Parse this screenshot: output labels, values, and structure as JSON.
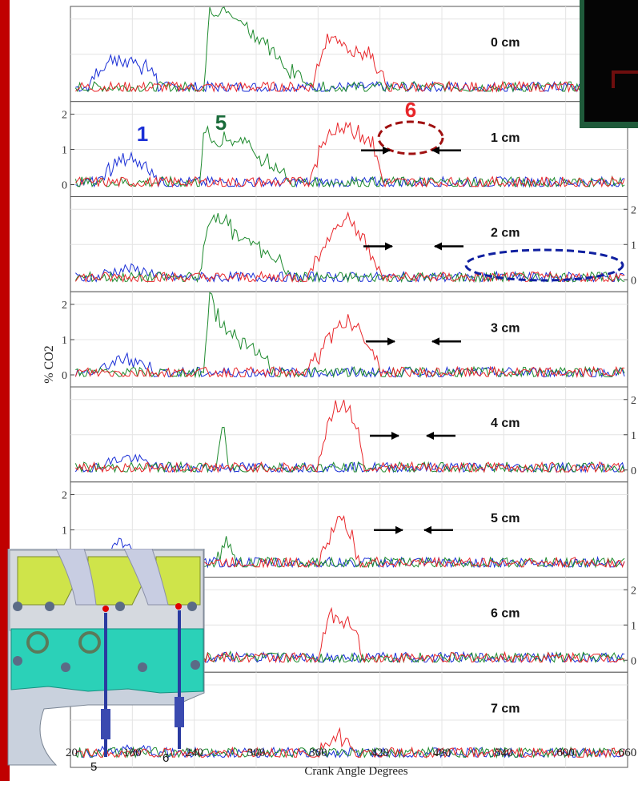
{
  "title_fragment": "",
  "chart_data": {
    "type": "line",
    "xlabel": "Crank Angle Degrees",
    "ylabel": "% CO2",
    "xlim": [
      120,
      660
    ],
    "x_ticks": [
      "20",
      "180",
      "240",
      "300",
      "360",
      "420",
      "480",
      "540",
      "600",
      "660"
    ],
    "y_ticks": [
      "0",
      "1",
      "2"
    ],
    "grid": true,
    "series_colors": {
      "cyl1": "#1a2fd6",
      "cyl5": "#1e8a2e",
      "cyl6": "#e8262a"
    },
    "panels": [
      {
        "label": "0 cm",
        "left_axis": false,
        "right_axis": false,
        "cyl1": [
          [
            140,
            0.25
          ],
          [
            160,
            0.8
          ],
          [
            185,
            0.72
          ],
          [
            205,
            0.35
          ]
        ],
        "cyl5": [
          [
            250,
            0.2
          ],
          [
            255,
            2.3
          ],
          [
            272,
            2.1
          ],
          [
            290,
            1.8
          ],
          [
            310,
            1.15
          ],
          [
            330,
            0.55
          ],
          [
            350,
            0.2
          ]
        ],
        "cyl6": [
          [
            355,
            0.2
          ],
          [
            368,
            1.45
          ],
          [
            390,
            1.05
          ],
          [
            410,
            0.95
          ],
          [
            425,
            0.2
          ]
        ]
      },
      {
        "label": "1 cm",
        "left_axis": true,
        "right_axis": false,
        "cyl1": [
          [
            150,
            0.15
          ],
          [
            170,
            0.65
          ],
          [
            190,
            0.55
          ],
          [
            205,
            0.2
          ]
        ],
        "cyl5": [
          [
            245,
            0.2
          ],
          [
            250,
            1.45
          ],
          [
            265,
            1.1
          ],
          [
            285,
            1.25
          ],
          [
            305,
            0.7
          ],
          [
            330,
            0.2
          ]
        ],
        "cyl6": [
          [
            352,
            0.2
          ],
          [
            368,
            1.4
          ],
          [
            392,
            1.55
          ],
          [
            412,
            1.25
          ],
          [
            422,
            0.15
          ]
        ]
      },
      {
        "label": "2 cm",
        "left_axis": false,
        "right_axis": true,
        "cyl1": [
          [
            150,
            0.1
          ],
          [
            175,
            0.25
          ],
          [
            200,
            0.15
          ]
        ],
        "cyl5": [
          [
            245,
            0.2
          ],
          [
            258,
            1.95
          ],
          [
            275,
            1.35
          ],
          [
            295,
            1.0
          ],
          [
            315,
            0.55
          ],
          [
            335,
            0.2
          ]
        ],
        "cyl6": [
          [
            352,
            0.2
          ],
          [
            365,
            0.9
          ],
          [
            385,
            1.75
          ],
          [
            405,
            1.05
          ],
          [
            420,
            0.15
          ]
        ]
      },
      {
        "label": "3 cm",
        "left_axis": true,
        "right_axis": false,
        "cyl1": [
          [
            150,
            0.15
          ],
          [
            175,
            0.4
          ],
          [
            200,
            0.15
          ]
        ],
        "cyl5": [
          [
            250,
            0.2
          ],
          [
            255,
            2.45
          ],
          [
            262,
            1.55
          ],
          [
            275,
            1.15
          ],
          [
            295,
            0.75
          ],
          [
            315,
            0.2
          ]
        ],
        "cyl6": [
          [
            352,
            0.2
          ],
          [
            372,
            0.95
          ],
          [
            388,
            1.6
          ],
          [
            405,
            1.0
          ],
          [
            420,
            0.15
          ]
        ]
      },
      {
        "label": "4 cm",
        "left_axis": false,
        "right_axis": true,
        "cyl1": [
          [
            150,
            0.1
          ],
          [
            175,
            0.3
          ],
          [
            200,
            0.1
          ]
        ],
        "cyl5": [
          [
            262,
            0.15
          ],
          [
            268,
            1.25
          ],
          [
            273,
            0.2
          ]
        ],
        "cyl6": [
          [
            360,
            0.15
          ],
          [
            372,
            1.5
          ],
          [
            385,
            1.85
          ],
          [
            398,
            1.2
          ],
          [
            405,
            0.15
          ]
        ]
      },
      {
        "label": "5 cm",
        "left_axis": true,
        "right_axis": false,
        "cyl1": [
          [
            150,
            0.15
          ],
          [
            175,
            0.55
          ],
          [
            200,
            0.15
          ]
        ],
        "cyl5": [
          [
            262,
            0.15
          ],
          [
            270,
            0.7
          ],
          [
            280,
            0.15
          ]
        ],
        "cyl6": [
          [
            362,
            0.15
          ],
          [
            375,
            0.9
          ],
          [
            383,
            1.35
          ],
          [
            395,
            0.5
          ],
          [
            400,
            0.15
          ]
        ]
      },
      {
        "label": "6 cm",
        "left_axis": false,
        "right_axis": true,
        "cyl1": [
          [
            150,
            0.05
          ],
          [
            175,
            0.1
          ],
          [
            200,
            0.05
          ]
        ],
        "cyl5": [
          [
            262,
            0.05
          ],
          [
            270,
            0.1
          ],
          [
            280,
            0.05
          ]
        ],
        "cyl6": [
          [
            362,
            0.2
          ],
          [
            372,
            1.3
          ],
          [
            385,
            0.95
          ],
          [
            395,
            0.9
          ],
          [
            402,
            0.2
          ]
        ]
      },
      {
        "label": "7 cm",
        "left_axis": false,
        "right_axis": false,
        "cyl1": [
          [
            150,
            0.05
          ],
          [
            175,
            0.1
          ],
          [
            200,
            0.05
          ]
        ],
        "cyl5": [
          [
            262,
            0.05
          ],
          [
            270,
            0.1
          ],
          [
            280,
            0.05
          ]
        ],
        "cyl6": [
          [
            362,
            0.2
          ],
          [
            380,
            0.4
          ],
          [
            395,
            0.2
          ]
        ]
      }
    ],
    "annotations": {
      "cyl1_label": "1",
      "cyl5_label": "5",
      "cyl6_label": "6"
    }
  },
  "inset": {
    "port_label_5": "5",
    "port_label_6": "6"
  }
}
